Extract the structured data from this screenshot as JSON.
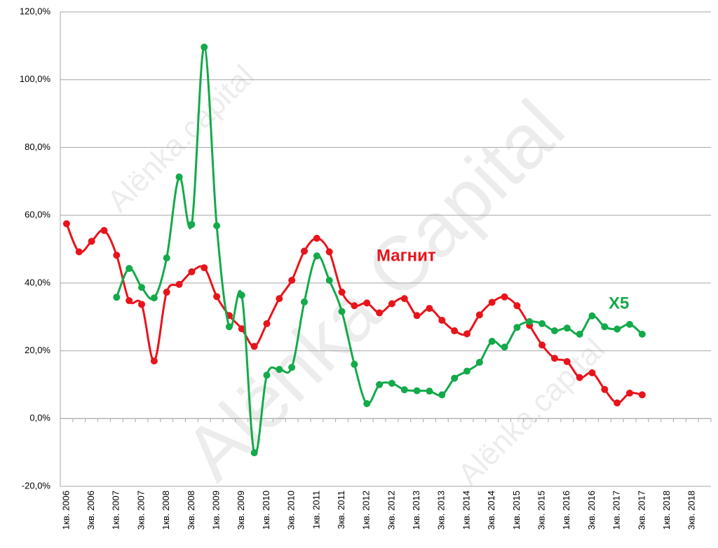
{
  "chart_data": {
    "type": "line",
    "categories": [
      "1кв. 2006",
      null,
      "3кв. 2006",
      null,
      "1кв. 2007",
      null,
      "3кв. 2007",
      null,
      "1кв. 2008",
      null,
      "3кв. 2008",
      null,
      "1кв. 2009",
      null,
      "3кв. 2009",
      null,
      "1кв. 2010",
      null,
      "3кв. 2010",
      null,
      "1кв. 2011",
      null,
      "3кв. 2011",
      null,
      "1кв. 2012",
      null,
      "3кв. 2012",
      null,
      "1кв. 2013",
      null,
      "3кв. 2013",
      null,
      "1кв. 2014",
      null,
      "3кв. 2014",
      null,
      "1кв. 2015",
      null,
      "3кв. 2015",
      null,
      "1кв. 2016",
      null,
      "3кв. 2016",
      null,
      "1кв. 2017",
      null,
      "3кв. 2017",
      null,
      "1кв. 2018",
      null,
      "3кв. 2018",
      null
    ],
    "series": [
      {
        "name": "Магнит",
        "color": "#e8141b",
        "values": [
          57.5,
          49.2,
          52.3,
          55.5,
          48.2,
          34.8,
          33.7,
          17.0,
          37.3,
          39.6,
          43.3,
          44.5,
          36.0,
          30.4,
          26.5,
          21.3,
          28.0,
          35.4,
          40.8,
          49.4,
          53.2,
          49.2,
          37.3,
          33.3,
          34.1,
          31.2,
          33.9,
          35.4,
          30.4,
          32.5,
          29.0,
          25.9,
          25.0,
          30.6,
          34.3,
          35.9,
          33.3,
          27.5,
          21.7,
          17.8,
          16.8,
          12.1,
          13.5,
          8.6,
          4.6,
          7.5,
          7.0,
          null,
          null,
          null,
          null,
          null
        ]
      },
      {
        "name": "X5",
        "color": "#13aa4a",
        "values": [
          null,
          null,
          null,
          null,
          35.8,
          44.3,
          38.7,
          35.6,
          47.4,
          71.3,
          57.3,
          109.6,
          56.9,
          27.1,
          36.4,
          -10.1,
          12.8,
          14.5,
          15.1,
          34.4,
          48.0,
          40.8,
          31.6,
          16.0,
          4.4,
          10.0,
          10.4,
          8.5,
          8.2,
          8.1,
          7.0,
          11.9,
          14.0,
          16.6,
          22.8,
          21.1,
          26.9,
          28.6,
          28.0,
          25.9,
          26.7,
          24.9,
          30.3,
          27.1,
          26.4,
          27.8,
          24.9,
          null,
          null,
          null,
          null,
          null
        ]
      }
    ],
    "ylim": [
      -20,
      120
    ],
    "yticks": [
      {
        "value": -20,
        "label": "-20,0%"
      },
      {
        "value": 0,
        "label": "0,0%"
      },
      {
        "value": 20,
        "label": "20,0%"
      },
      {
        "value": 40,
        "label": "40,0%"
      },
      {
        "value": 60,
        "label": "60,0%"
      },
      {
        "value": 80,
        "label": "80,0%"
      },
      {
        "value": 100,
        "label": "100,0%"
      },
      {
        "value": 120,
        "label": "120,0%"
      }
    ],
    "grid": true,
    "watermarks": [
      "Alёnka.capital",
      "Alёnka Capital"
    ]
  }
}
